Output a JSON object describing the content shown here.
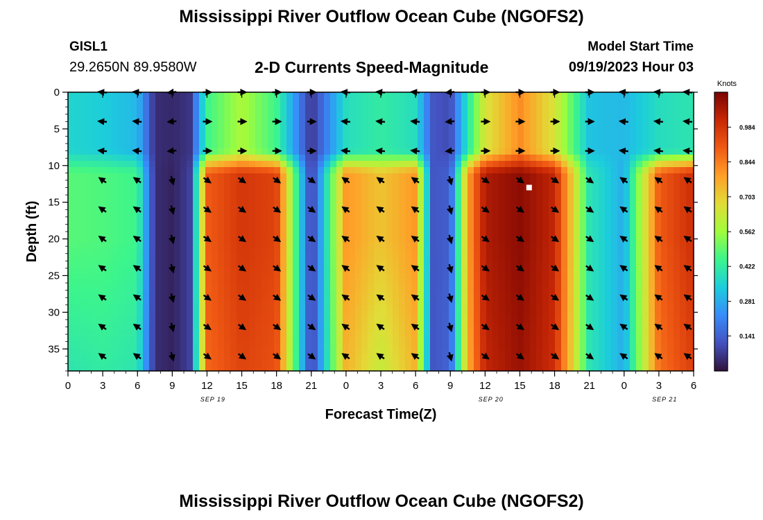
{
  "header": {
    "title": "Mississippi River Outflow Ocean Cube (NGOFS2)",
    "station": "GISL1",
    "coords": "29.2650N  89.9580W",
    "subtitle": "2-D Currents Speed-Magnitude",
    "start_label": "Model Start Time",
    "start_value": "09/19/2023 Hour 03"
  },
  "footer": {
    "title": "Mississippi River Outflow Ocean Cube (NGOFS2)"
  },
  "chart_data": {
    "type": "heatmap",
    "title": "2-D Currents Speed-Magnitude",
    "xlabel": "Forecast Time(Z)",
    "ylabel": "Depth (ft)",
    "xlim": [
      0,
      54
    ],
    "ylim": [
      38,
      0
    ],
    "x_ticks": [
      0,
      3,
      6,
      9,
      12,
      15,
      18,
      21,
      24,
      27,
      30,
      33,
      36,
      39,
      42,
      45,
      48,
      51,
      54
    ],
    "x_tick_labels": [
      "0",
      "3",
      "6",
      "9",
      "12",
      "15",
      "18",
      "21",
      "0",
      "3",
      "6",
      "9",
      "12",
      "15",
      "18",
      "21",
      "0",
      "3",
      "6"
    ],
    "y_ticks": [
      0,
      5,
      10,
      15,
      20,
      25,
      30,
      35
    ],
    "y_tick_labels": [
      "0",
      "5",
      "10",
      "15",
      "20",
      "25",
      "30",
      "35"
    ],
    "date_labels": [
      {
        "x": 12.5,
        "text": "SEP 19"
      },
      {
        "x": 36.5,
        "text": "SEP 20"
      },
      {
        "x": 51.5,
        "text": "SEP 21"
      }
    ],
    "colorbar": {
      "title": "Knots",
      "min": 0.0,
      "max": 1.125,
      "ticks": [
        0.141,
        0.281,
        0.422,
        0.562,
        0.703,
        0.844,
        0.984
      ],
      "tick_labels": [
        "0.141",
        "0.281",
        "0.422",
        "0.562",
        "0.703",
        "0.844",
        "0.984"
      ]
    },
    "time_hours": [
      0,
      3,
      6,
      7.5,
      9,
      10.5,
      12,
      15,
      18,
      21,
      24,
      27,
      30,
      31.5,
      33,
      34.5,
      36,
      39,
      42,
      45,
      48,
      51,
      54
    ],
    "surface_speed": [
      0.36,
      0.34,
      0.3,
      0.05,
      0.04,
      0.06,
      0.45,
      0.58,
      0.45,
      0.06,
      0.38,
      0.42,
      0.38,
      0.12,
      0.1,
      0.4,
      0.65,
      0.82,
      0.65,
      0.32,
      0.3,
      0.38,
      0.4
    ],
    "mid_speed": [
      0.48,
      0.47,
      0.45,
      0.05,
      0.03,
      0.08,
      0.9,
      0.98,
      0.95,
      0.06,
      0.8,
      0.72,
      0.8,
      0.12,
      0.14,
      0.78,
      1.05,
      1.1,
      1.02,
      0.4,
      0.28,
      0.9,
      1.0
    ],
    "deep_speed": [
      0.4,
      0.42,
      0.4,
      0.05,
      0.03,
      0.08,
      0.88,
      0.95,
      0.92,
      0.07,
      0.75,
      0.62,
      0.75,
      0.12,
      0.15,
      0.75,
      1.02,
      1.08,
      1.0,
      0.4,
      0.28,
      0.86,
      0.96
    ],
    "arrow_depths_ft": [
      0,
      4,
      8,
      12,
      16,
      20,
      24,
      28,
      32,
      36
    ],
    "arrow_times_hours": [
      3,
      6,
      9,
      12,
      15,
      18,
      21,
      24,
      27,
      30,
      33,
      36,
      39,
      42,
      45,
      48,
      51,
      54
    ],
    "marker": {
      "x": 39.8,
      "y": 13
    }
  }
}
